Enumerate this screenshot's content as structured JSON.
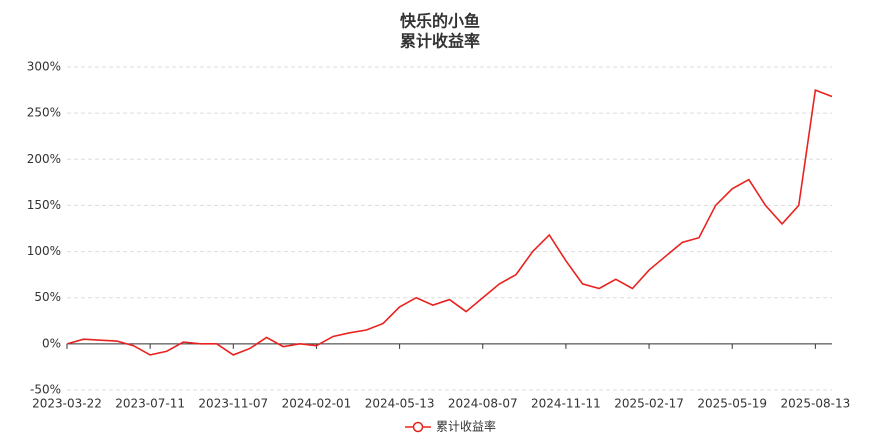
{
  "chart_data": {
    "type": "line",
    "title": "快乐的小鱼",
    "subtitle": "累计收益率",
    "x": [
      "2023-03-22",
      "2023-04-13",
      "2023-05-08",
      "2023-05-30",
      "2023-06-19",
      "2023-07-11",
      "2023-08-02",
      "2023-08-24",
      "2023-09-15",
      "2023-10-16",
      "2023-11-07",
      "2023-11-24",
      "2023-12-12",
      "2023-12-29",
      "2024-01-17",
      "2024-02-01",
      "2024-02-26",
      "2024-03-15",
      "2024-04-03",
      "2024-04-23",
      "2024-05-13",
      "2024-05-31",
      "2024-06-19",
      "2024-07-09",
      "2024-07-26",
      "2024-08-07",
      "2024-08-26",
      "2024-09-12",
      "2024-09-30",
      "2024-10-21",
      "2024-11-11",
      "2024-11-29",
      "2024-12-18",
      "2025-01-08",
      "2025-01-24",
      "2025-02-17",
      "2025-03-07",
      "2025-03-25",
      "2025-04-14",
      "2025-04-30",
      "2025-05-19",
      "2025-06-06",
      "2025-06-24",
      "2025-07-11",
      "2025-07-25",
      "2025-08-13",
      "2025-08-26"
    ],
    "series": [
      {
        "name": "累计收益率",
        "color": "#e8231f",
        "values": [
          0,
          5,
          4,
          3,
          -2,
          -12,
          -8,
          2,
          0,
          0,
          -12,
          -5,
          7,
          -3,
          0,
          -2,
          8,
          12,
          15,
          22,
          40,
          50,
          42,
          48,
          35,
          50,
          65,
          75,
          100,
          118,
          90,
          65,
          60,
          70,
          60,
          80,
          95,
          110,
          115,
          150,
          168,
          178,
          150,
          130,
          150,
          275,
          268
        ]
      }
    ],
    "ylim": [
      -50,
      300
    ],
    "yticks": [
      {
        "value": -50,
        "label": "-50%"
      },
      {
        "value": 0,
        "label": "0%"
      },
      {
        "value": 50,
        "label": "50%"
      },
      {
        "value": 100,
        "label": "100%"
      },
      {
        "value": 150,
        "label": "150%"
      },
      {
        "value": 200,
        "label": "200%"
      },
      {
        "value": 250,
        "label": "250%"
      },
      {
        "value": 300,
        "label": "300%"
      }
    ],
    "xticks": [
      "2023-03-22",
      "2023-07-11",
      "2023-11-07",
      "2024-02-01",
      "2024-05-13",
      "2024-08-07",
      "2024-11-11",
      "2025-02-17",
      "2025-05-19",
      "2025-08-13"
    ],
    "grid": true
  }
}
